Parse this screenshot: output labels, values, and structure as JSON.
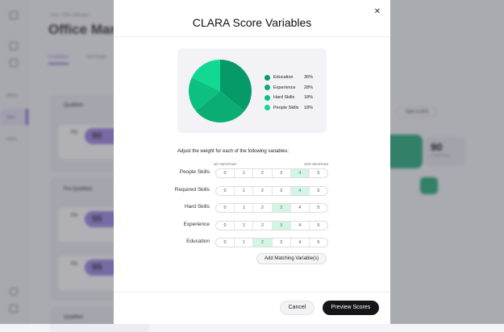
{
  "background": {
    "breadcrumb": "Jobs › Office Manager",
    "page_title": "Office Manager",
    "tabs": [
      "Candidates",
      "Job Details"
    ],
    "sidebar": [
      "Home",
      "Jobs",
      "Users"
    ],
    "groups": [
      "Qualified",
      "Pre-Qualified",
      "Qualified"
    ],
    "candidate_initials": "FG",
    "candidate_scores": [
      "90",
      "95",
      "95"
    ],
    "open_ats": "Open in ATS",
    "clara_score": "90",
    "clara_score_label": "CLARA Score"
  },
  "modal": {
    "title": "CLARA Score Variables",
    "close_icon": "close-icon",
    "legend": [
      {
        "label": "Education",
        "pct": "36%",
        "value": 36,
        "color": "#069a68"
      },
      {
        "label": "Experience",
        "pct": "28%",
        "value": 28,
        "color": "#0aae72"
      },
      {
        "label": "Hard Skills",
        "pct": "18%",
        "value": 18,
        "color": "#0cc07f"
      },
      {
        "label": "People Skills",
        "pct": "18%",
        "value": 18,
        "color": "#12d893"
      }
    ],
    "intro": "Adjust the weight for each of the following variables:",
    "not_important": "NOT IMPORTANT",
    "very_important": "VERY IMPORTANT",
    "scale": [
      "0",
      "1",
      "2",
      "3",
      "4",
      "5"
    ],
    "variables": [
      {
        "label": "People Skills",
        "selected": 4
      },
      {
        "label": "Required Skills",
        "selected": 4
      },
      {
        "label": "Hard Skills",
        "selected": 3
      },
      {
        "label": "Experience",
        "selected": 3
      },
      {
        "label": "Education",
        "selected": 2
      }
    ],
    "add_button": "Add Matching Variable(s)",
    "cancel": "Cancel",
    "preview": "Preview Scores"
  }
}
